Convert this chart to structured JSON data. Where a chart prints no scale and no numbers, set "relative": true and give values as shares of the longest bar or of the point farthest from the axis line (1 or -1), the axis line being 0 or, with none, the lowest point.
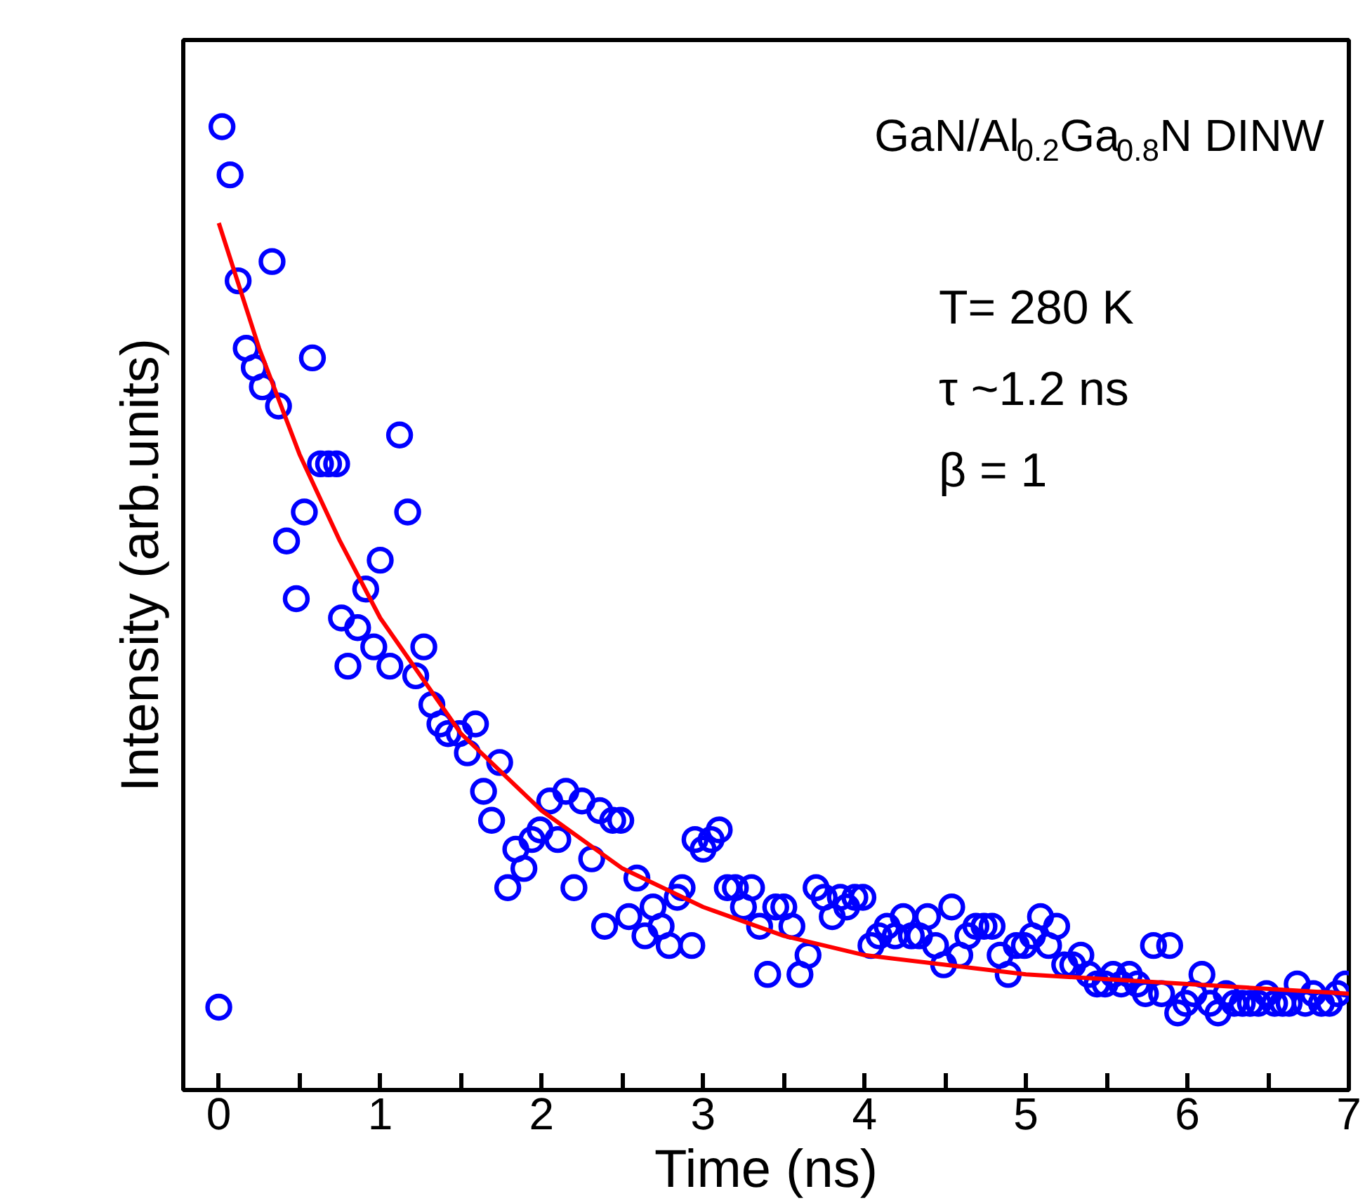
{
  "chart_data": {
    "type": "scatter",
    "relative": true,
    "xlabel": "Time (ns)",
    "ylabel": "Intensity (arb.units)",
    "xlim": [
      -0.22,
      7.0
    ],
    "xticks": [
      0,
      {
        "value": 0.5,
        "label": null
      },
      1,
      {
        "value": 1.5,
        "label": null
      },
      2,
      {
        "value": 2.5,
        "label": null
      },
      3,
      {
        "value": 3.5,
        "label": null
      },
      4,
      {
        "value": 4.5,
        "label": null
      },
      5,
      {
        "value": 5.5,
        "label": null
      },
      6,
      {
        "value": 6.5,
        "label": null
      },
      7
    ],
    "tick_labels": "x",
    "grid": false,
    "annotations": [
      "GaN/Al$_{0.2}$Ga$_{0.8}$N DINW",
      "T= 280 K",
      "τ ~1.2 ns",
      "β = 1"
    ],
    "series": [
      {
        "marker": "circle",
        "color": "#0000ff",
        "x": [
          0,
          0.02,
          0.07,
          0.12,
          0.17,
          0.22,
          0.27,
          0.33,
          0.37,
          0.42,
          0.48,
          0.53,
          0.58,
          0.63,
          0.68,
          0.73,
          0.76,
          0.8,
          0.86,
          0.91,
          0.96,
          1.0,
          1.06,
          1.12,
          1.17,
          1.22,
          1.27,
          1.32,
          1.37,
          1.42,
          1.49,
          1.54,
          1.59,
          1.64,
          1.69,
          1.74,
          1.79,
          1.84,
          1.89,
          1.94,
          1.99,
          2.05,
          2.1,
          2.15,
          2.2,
          2.25,
          2.31,
          2.36,
          2.39,
          2.44,
          2.49,
          2.54,
          2.59,
          2.64,
          2.69,
          2.74,
          2.79,
          2.84,
          2.87,
          2.93,
          2.95,
          3.0,
          3.05,
          3.1,
          3.15,
          3.2,
          3.25,
          3.3,
          3.35,
          3.4,
          3.45,
          3.5,
          3.55,
          3.6,
          3.65,
          3.7,
          3.75,
          3.8,
          3.85,
          3.89,
          3.94,
          3.99,
          4.04,
          4.09,
          4.14,
          4.19,
          4.24,
          4.29,
          4.34,
          4.39,
          4.44,
          4.49,
          4.54,
          4.59,
          4.64,
          4.69,
          4.74,
          4.79,
          4.84,
          4.89,
          4.94,
          4.99,
          5.04,
          5.09,
          5.14,
          5.19,
          5.24,
          5.29,
          5.34,
          5.39,
          5.44,
          5.49,
          5.54,
          5.59,
          5.64,
          5.69,
          5.74,
          5.79,
          5.84,
          5.89,
          5.94,
          5.99,
          6.04,
          6.09,
          6.14,
          6.19,
          6.24,
          6.29,
          6.34,
          6.39,
          6.44,
          6.49,
          6.54,
          6.59,
          6.63,
          6.68,
          6.73,
          6.78,
          6.83,
          6.88,
          6.93,
          6.98
        ],
        "values": [
          0.086,
          1.0,
          0.95,
          0.84,
          0.77,
          0.75,
          0.73,
          0.86,
          0.71,
          0.57,
          0.51,
          0.6,
          0.76,
          0.65,
          0.65,
          0.65,
          0.49,
          0.44,
          0.48,
          0.52,
          0.46,
          0.55,
          0.44,
          0.68,
          0.6,
          0.43,
          0.46,
          0.4,
          0.38,
          0.37,
          0.37,
          0.35,
          0.38,
          0.31,
          0.28,
          0.34,
          0.21,
          0.25,
          0.23,
          0.26,
          0.27,
          0.3,
          0.26,
          0.31,
          0.21,
          0.3,
          0.24,
          0.29,
          0.17,
          0.28,
          0.28,
          0.18,
          0.22,
          0.16,
          0.19,
          0.17,
          0.15,
          0.2,
          0.21,
          0.15,
          0.26,
          0.25,
          0.26,
          0.27,
          0.21,
          0.21,
          0.19,
          0.21,
          0.17,
          0.12,
          0.19,
          0.19,
          0.17,
          0.12,
          0.14,
          0.21,
          0.2,
          0.18,
          0.2,
          0.19,
          0.2,
          0.2,
          0.15,
          0.16,
          0.17,
          0.16,
          0.18,
          0.16,
          0.16,
          0.18,
          0.15,
          0.13,
          0.19,
          0.14,
          0.16,
          0.17,
          0.17,
          0.17,
          0.14,
          0.12,
          0.15,
          0.15,
          0.16,
          0.18,
          0.15,
          0.17,
          0.13,
          0.13,
          0.14,
          0.12,
          0.11,
          0.11,
          0.12,
          0.11,
          0.12,
          0.11,
          0.1,
          0.15,
          0.1,
          0.15,
          0.08,
          0.09,
          0.1,
          0.12,
          0.09,
          0.08,
          0.1,
          0.09,
          0.09,
          0.09,
          0.09,
          0.1,
          0.09,
          0.09,
          0.09,
          0.11,
          0.09,
          0.1,
          0.09,
          0.09,
          0.1,
          0.11
        ]
      },
      {
        "type": "line",
        "marker": "none",
        "line_style": "solid",
        "color": "#ff0000",
        "x": [
          0,
          0.25,
          0.5,
          0.75,
          1,
          1.5,
          2,
          2.5,
          3,
          3.5,
          4,
          5,
          6,
          7
        ],
        "values": [
          0.9,
          0.77,
          0.66,
          0.57,
          0.49,
          0.37,
          0.29,
          0.23,
          0.19,
          0.16,
          0.14,
          0.12,
          0.11,
          0.1
        ]
      }
    ]
  }
}
